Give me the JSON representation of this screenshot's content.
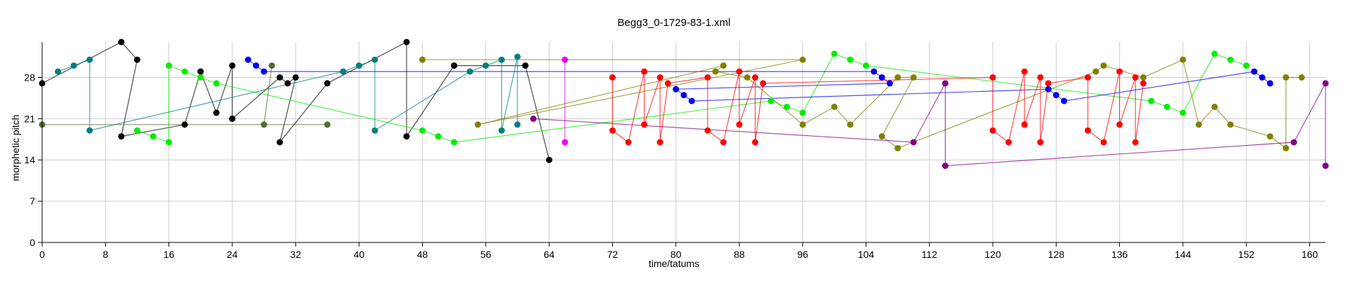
{
  "chart_data": {
    "type": "scatter",
    "title": "Begg3_0-1729-83-1.xml",
    "xlabel": "time/tatums",
    "ylabel": "morphetic pitch",
    "xlim": [
      0,
      162
    ],
    "ylim": [
      0,
      34
    ],
    "xticks": [
      0,
      8,
      16,
      24,
      32,
      40,
      48,
      56,
      64,
      72,
      80,
      88,
      96,
      104,
      112,
      120,
      128,
      136,
      144,
      152,
      160
    ],
    "yticks": [
      0,
      7,
      14,
      21,
      28
    ],
    "grid": true,
    "legend": "none",
    "series": [
      {
        "color": "#000000",
        "points": [
          [
            0,
            27
          ],
          [
            10,
            34
          ],
          [
            12,
            31
          ],
          [
            10,
            18
          ],
          [
            18,
            20
          ],
          [
            20,
            29
          ],
          [
            22,
            22
          ],
          [
            24,
            30
          ],
          [
            24,
            21
          ],
          [
            30,
            28
          ],
          [
            31,
            27
          ],
          [
            32,
            28
          ],
          [
            30,
            17
          ],
          [
            36,
            27
          ],
          [
            46,
            34
          ],
          [
            46,
            18
          ],
          [
            52,
            30
          ],
          [
            61,
            30
          ],
          [
            64,
            14
          ]
        ]
      },
      {
        "color": "#008080",
        "points": [
          [
            2,
            29
          ],
          [
            4,
            30
          ],
          [
            6,
            31
          ],
          [
            6,
            19
          ],
          [
            38,
            29
          ],
          [
            40,
            30
          ],
          [
            42,
            31
          ],
          [
            42,
            19
          ],
          [
            54,
            29
          ],
          [
            56,
            30
          ],
          [
            58,
            31
          ],
          [
            58,
            19
          ],
          [
            60,
            31.5
          ],
          [
            60,
            20
          ]
        ]
      },
      {
        "color": "#00ee00",
        "points": [
          [
            12,
            19
          ],
          [
            14,
            18
          ],
          [
            16,
            17
          ],
          [
            16,
            30
          ],
          [
            18,
            29
          ],
          [
            20,
            28
          ],
          [
            22,
            27
          ],
          [
            48,
            19
          ],
          [
            50,
            18
          ],
          [
            52,
            17
          ],
          [
            92,
            24
          ],
          [
            94,
            23
          ],
          [
            96,
            22
          ],
          [
            100,
            32
          ],
          [
            102,
            31
          ],
          [
            104,
            30
          ],
          [
            140,
            24
          ],
          [
            142,
            23
          ],
          [
            144,
            22
          ],
          [
            148,
            32
          ],
          [
            150,
            31
          ],
          [
            152,
            30
          ]
        ]
      },
      {
        "color": "#0000ee",
        "points": [
          [
            26,
            31
          ],
          [
            27,
            30
          ],
          [
            28,
            29
          ],
          [
            105,
            29
          ],
          [
            106,
            28
          ],
          [
            107,
            27
          ],
          [
            80,
            26
          ],
          [
            81,
            25
          ],
          [
            82,
            24
          ],
          [
            127,
            26
          ],
          [
            128,
            25
          ],
          [
            129,
            24
          ],
          [
            153,
            29
          ],
          [
            154,
            28
          ],
          [
            155,
            27
          ]
        ]
      },
      {
        "color": "#556b2f",
        "points": [
          [
            29,
            30
          ],
          [
            28,
            20
          ],
          [
            0,
            20
          ],
          [
            36,
            20
          ]
        ]
      },
      {
        "color": "#808000",
        "points": [
          [
            48,
            31
          ],
          [
            96,
            31
          ],
          [
            55,
            20
          ],
          [
            86,
            30
          ],
          [
            85,
            29
          ],
          [
            89,
            28
          ],
          [
            96,
            20
          ],
          [
            100,
            23
          ],
          [
            102,
            20
          ],
          [
            108,
            28
          ],
          [
            110,
            28
          ],
          [
            106,
            18
          ],
          [
            108,
            16
          ],
          [
            133,
            29
          ],
          [
            134,
            30
          ],
          [
            139,
            28
          ],
          [
            144,
            31
          ],
          [
            146,
            20
          ],
          [
            148,
            23
          ],
          [
            150,
            20
          ],
          [
            155,
            18
          ],
          [
            157,
            16
          ],
          [
            157,
            28
          ],
          [
            159,
            28
          ]
        ]
      },
      {
        "color": "#ee00ee",
        "points": [
          [
            66,
            31
          ],
          [
            66,
            17
          ]
        ]
      },
      {
        "color": "#800080",
        "points": [
          [
            62,
            21
          ],
          [
            110,
            17
          ],
          [
            114,
            27
          ],
          [
            114,
            13
          ],
          [
            158,
            17
          ],
          [
            162,
            27
          ],
          [
            162,
            13
          ]
        ]
      },
      {
        "color": "#ff0000",
        "points": [
          [
            72,
            28
          ],
          [
            72,
            19
          ],
          [
            74,
            17
          ],
          [
            76,
            29
          ],
          [
            76,
            20
          ],
          [
            78,
            28
          ],
          [
            78,
            17
          ],
          [
            79,
            27
          ],
          [
            84,
            28
          ],
          [
            84,
            19
          ],
          [
            86,
            17
          ],
          [
            88,
            29
          ],
          [
            88,
            20
          ],
          [
            90,
            28
          ],
          [
            90,
            17
          ],
          [
            91,
            27
          ],
          [
            120,
            28
          ],
          [
            120,
            19
          ],
          [
            122,
            17
          ],
          [
            124,
            29
          ],
          [
            124,
            20
          ],
          [
            126,
            28
          ],
          [
            126,
            17
          ],
          [
            127,
            27
          ],
          [
            132,
            28
          ],
          [
            132,
            19
          ],
          [
            134,
            17
          ],
          [
            136,
            29
          ],
          [
            136,
            20
          ],
          [
            138,
            28
          ],
          [
            138,
            17
          ],
          [
            139,
            27
          ]
        ]
      }
    ]
  }
}
